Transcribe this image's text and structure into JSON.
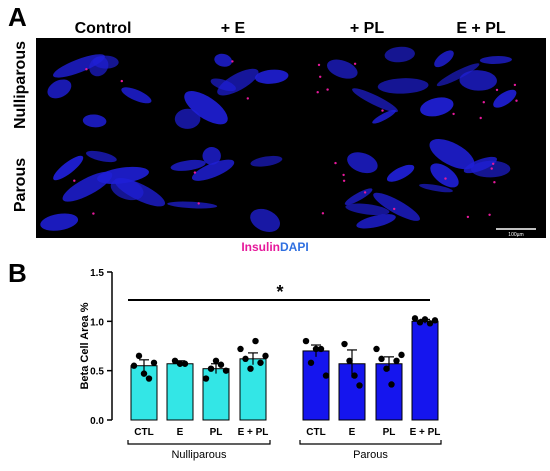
{
  "panel_a": {
    "letter": "A",
    "columns": [
      "Control",
      "+ E",
      "+ PL",
      "E + PL"
    ],
    "rows": [
      "Nulliparous",
      "Parous"
    ],
    "legend": {
      "insulin": "Insulin",
      "dapi": "DAPI",
      "insulin_color": "#e6199b",
      "dapi_color": "#2f6fe0"
    },
    "scale_bar_label": "100µm",
    "tile_background": "#000000",
    "tissue_color": "#1f1fd6"
  },
  "panel_b": {
    "letter": "B"
  },
  "chart_data": {
    "type": "bar",
    "ylabel": "Beta Cell Area %",
    "ylim": [
      0.0,
      1.5
    ],
    "yticks": [
      "0.0",
      "0.5",
      "1.0",
      "1.5"
    ],
    "categories": [
      "CTL",
      "E",
      "PL",
      "E + PL",
      "CTL",
      "E",
      "PL",
      "E + PL"
    ],
    "groups": [
      {
        "name": "Nulliparous",
        "color": "#33e6e6"
      },
      {
        "name": "Parous",
        "color": "#1515ee"
      }
    ],
    "values": [
      0.55,
      0.57,
      0.52,
      0.62,
      0.7,
      0.57,
      0.57,
      1.0
    ],
    "errors": [
      0.06,
      0.03,
      0.05,
      0.06,
      0.06,
      0.14,
      0.07,
      0.02
    ],
    "points": [
      [
        0.55,
        0.65,
        0.47,
        0.42,
        0.58
      ],
      [
        0.6,
        0.57,
        0.57
      ],
      [
        0.42,
        0.52,
        0.6,
        0.56,
        0.5
      ],
      [
        0.72,
        0.62,
        0.52,
        0.8,
        0.58,
        0.65
      ],
      [
        0.8,
        0.58,
        0.72,
        0.72,
        0.45
      ],
      [
        0.77,
        0.6,
        0.45,
        0.35
      ],
      [
        0.72,
        0.62,
        0.52,
        0.36,
        0.6,
        0.66
      ],
      [
        1.03,
        0.99,
        1.02,
        0.98,
        1.01
      ]
    ],
    "significance": "*"
  }
}
